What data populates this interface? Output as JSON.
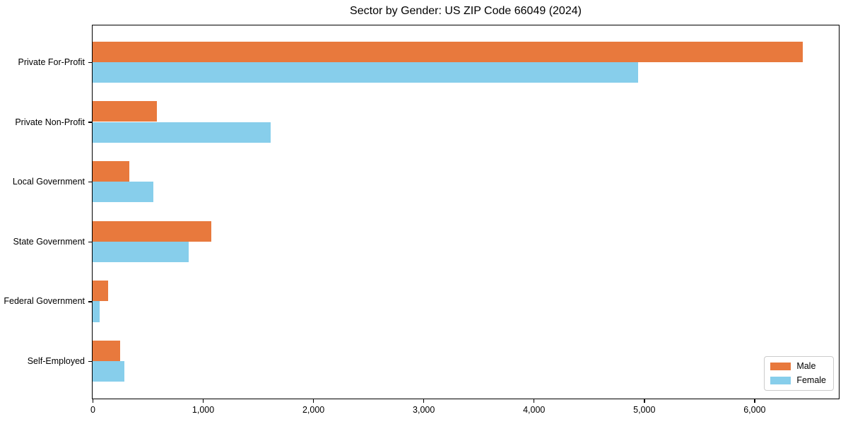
{
  "title": "Sector by Gender: US ZIP Code 66049 (2024)",
  "chart_data": {
    "type": "bar",
    "orientation": "horizontal",
    "title": "Sector by Gender: US ZIP Code 66049 (2024)",
    "xlabel": "",
    "ylabel": "",
    "categories": [
      "Private For-Profit",
      "Private Non-Profit",
      "Local Government",
      "State Government",
      "Federal Government",
      "Self-Employed"
    ],
    "series": [
      {
        "name": "Male",
        "color": "#E8793D",
        "values": [
          6440,
          585,
          335,
          1075,
          140,
          250
        ]
      },
      {
        "name": "Female",
        "color": "#87CEEB",
        "values": [
          4945,
          1615,
          550,
          870,
          65,
          290
        ]
      }
    ],
    "xlim": [
      0,
      6770
    ],
    "x_ticks": [
      0,
      1000,
      2000,
      3000,
      4000,
      5000,
      6000
    ],
    "x_tick_labels": [
      "0",
      "1,000",
      "2,000",
      "3,000",
      "4,000",
      "5,000",
      "6,000"
    ],
    "grid": false,
    "legend_position": "lower right",
    "axis_color": "#000000",
    "background_color": "#ffffff"
  }
}
